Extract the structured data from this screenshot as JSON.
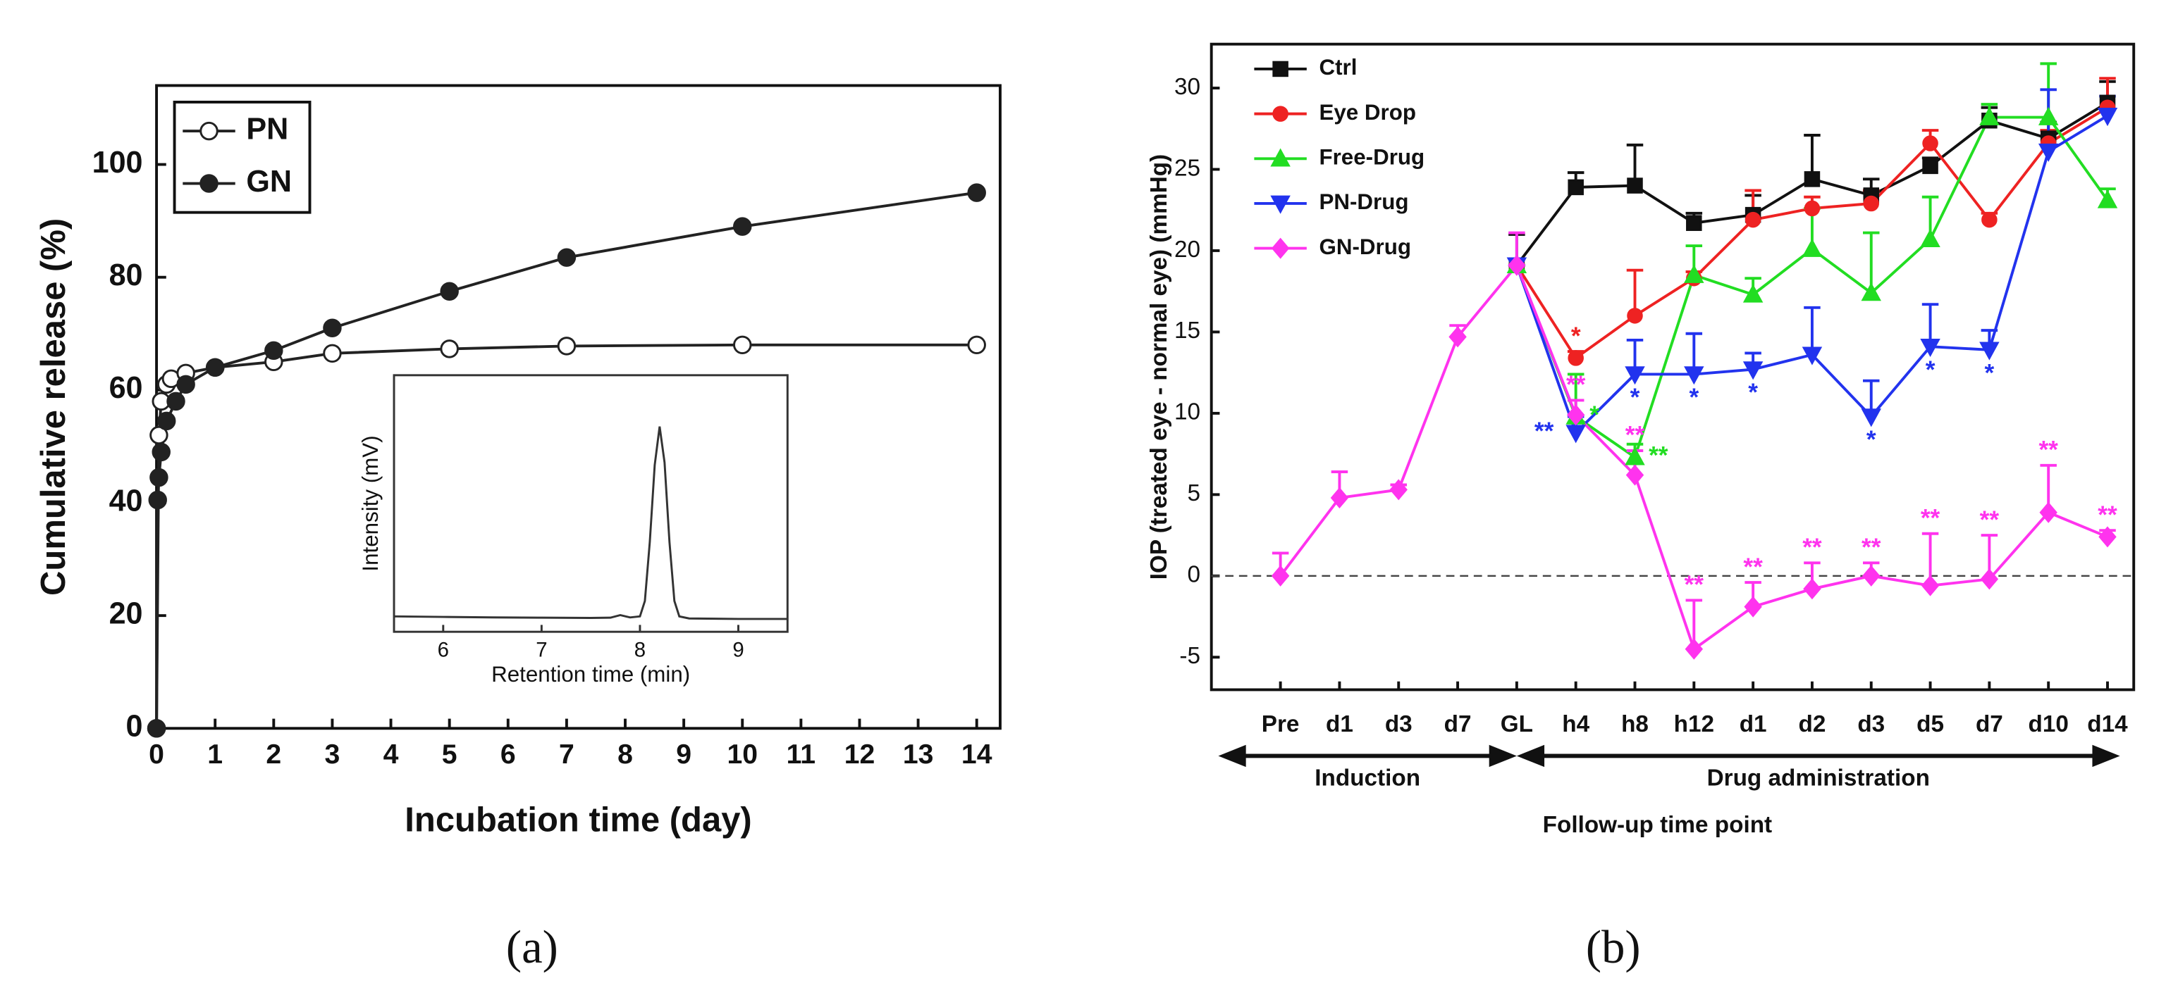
{
  "captions": [
    "(a)",
    "(b)"
  ],
  "chart_data": [
    {
      "type": "line",
      "xlabel": "Incubation time (day)",
      "ylabel": "Cumulative release (%)",
      "xlim": [
        0,
        14.4
      ],
      "ylim": [
        0,
        114
      ],
      "xticks": [
        0,
        1,
        2,
        3,
        4,
        5,
        6,
        7,
        8,
        9,
        10,
        11,
        12,
        13,
        14
      ],
      "yticks": [
        0,
        20,
        40,
        60,
        80,
        100
      ],
      "legend": "upper left",
      "series": [
        {
          "name": "PN",
          "color": "#222222",
          "marker_fill": "#ffffff",
          "x": [
            0,
            0.04,
            0.08,
            0.17,
            0.25,
            0.5,
            1,
            2,
            3,
            5,
            7,
            10,
            14
          ],
          "values": [
            0,
            52,
            58,
            61,
            62,
            63,
            64,
            65,
            66.5,
            67.3,
            67.8,
            68,
            68
          ]
        },
        {
          "name": "GN",
          "color": "#222222",
          "marker_fill": "#222222",
          "x": [
            0,
            0.02,
            0.04,
            0.08,
            0.17,
            0.33,
            0.5,
            1,
            2,
            3,
            5,
            7,
            10,
            14
          ],
          "values": [
            0,
            40.5,
            44.5,
            49,
            54.5,
            58,
            61,
            64,
            67,
            71,
            77.5,
            83.5,
            89,
            95
          ]
        }
      ]
    },
    {
      "type": "line",
      "xlabel": "Retention time (min)",
      "ylabel": "Intensity (mV)",
      "xlim": [
        5.5,
        9.5
      ],
      "ylim": [
        0,
        100
      ],
      "xticks": [
        6,
        7,
        8,
        9
      ],
      "series": [
        {
          "color": "#333333",
          "x": [
            5.5,
            6,
            6.5,
            7,
            7.5,
            7.7,
            7.8,
            7.9,
            8,
            8.05,
            8.1,
            8.15,
            8.2,
            8.25,
            8.3,
            8.35,
            8.4,
            8.5,
            9,
            9.5
          ],
          "values": [
            6,
            5.8,
            5.6,
            5.5,
            5.4,
            5.5,
            6.5,
            5.6,
            6,
            12,
            35,
            65,
            80,
            66,
            35,
            12,
            6,
            5.2,
            5,
            5
          ]
        }
      ]
    },
    {
      "type": "line",
      "xlabel": "Follow-up time point",
      "ylabel": "IOP (treated eye - normal eye) (mmHg)",
      "phases": [
        "Induction",
        "Drug administration"
      ],
      "categories": [
        "Pre",
        "d1",
        "d3",
        "d7",
        "GL",
        "h4",
        "h8",
        "h12",
        "d1",
        "d2",
        "d3",
        "d5",
        "d7",
        "d10",
        "d14"
      ],
      "ylim": [
        -7,
        32.7
      ],
      "yticks": [
        -5,
        0,
        5,
        10,
        15,
        20,
        25,
        30
      ],
      "hline": 0,
      "legend": "upper left",
      "series": [
        {
          "name": "Ctrl",
          "color": "#111111",
          "marker": "square",
          "star_position": "above",
          "values": [
            null,
            null,
            null,
            null,
            19.1,
            23.9,
            24,
            21.7,
            22.2,
            24.4,
            23.4,
            25.2,
            28,
            26.9,
            29.1
          ],
          "errors": [
            null,
            null,
            null,
            null,
            1.9,
            0.9,
            2.5,
            0.6,
            1.2,
            2.7,
            1,
            0.5,
            0.8,
            1,
            1.3
          ],
          "stars": [
            null,
            null,
            null,
            null,
            null,
            null,
            null,
            null,
            null,
            null,
            null,
            null,
            null,
            null,
            null
          ]
        },
        {
          "name": "Eye Drop",
          "color": "#ee2222",
          "marker": "circle",
          "star_position": "above",
          "values": [
            null,
            null,
            null,
            null,
            19.1,
            13.4,
            16,
            18.3,
            21.9,
            22.6,
            22.9,
            26.6,
            21.9,
            26.6,
            28.8
          ],
          "errors": [
            null,
            null,
            null,
            null,
            0,
            0.4,
            2.8,
            0.4,
            1.8,
            0.7,
            0.8,
            0.8,
            0.4,
            0.8,
            1.8
          ],
          "stars": [
            null,
            null,
            null,
            null,
            null,
            "*",
            null,
            null,
            null,
            null,
            null,
            null,
            null,
            null,
            null
          ]
        },
        {
          "name": "Free-Drug",
          "color": "#22dd22",
          "marker": "triangle",
          "star_position": "right",
          "values": [
            null,
            null,
            null,
            null,
            19.1,
            9.8,
            7.3,
            18.5,
            17.3,
            20.1,
            17.4,
            20.7,
            28.2,
            28.2,
            23.1
          ],
          "errors": [
            null,
            null,
            null,
            null,
            0,
            2.6,
            0.8,
            1.8,
            1,
            2.5,
            3.7,
            2.6,
            0.8,
            3.3,
            0.7
          ],
          "stars": [
            null,
            null,
            null,
            null,
            null,
            "*",
            "**",
            null,
            null,
            null,
            null,
            null,
            null,
            null,
            null
          ]
        },
        {
          "name": "PN-Drug",
          "color": "#2233ee",
          "marker": "triangle-down",
          "star_position": "below",
          "values": [
            null,
            null,
            null,
            null,
            19.1,
            8.8,
            12.4,
            12.4,
            12.7,
            13.6,
            9.8,
            14.1,
            13.9,
            26.1,
            28.3
          ],
          "errors": [
            null,
            null,
            null,
            null,
            0,
            1,
            2.1,
            2.5,
            1,
            2.9,
            2.2,
            2.6,
            1.2,
            3.8,
            1.2
          ],
          "stars": [
            null,
            null,
            null,
            null,
            null,
            "**",
            "*",
            "*",
            "*",
            null,
            "*",
            "*",
            "*",
            null,
            null
          ]
        },
        {
          "name": "GN-Drug",
          "color": "#ff33ee",
          "marker": "diamond",
          "star_position": "above",
          "values": [
            0,
            4.8,
            5.3,
            14.7,
            19.1,
            9.9,
            6.2,
            -4.5,
            -1.9,
            -0.8,
            0,
            -0.6,
            -0.2,
            3.9,
            2.4
          ],
          "errors": [
            1.4,
            1.6,
            0.3,
            0.7,
            2,
            0.9,
            1.5,
            3,
            1.5,
            1.6,
            0.8,
            3.2,
            2.7,
            2.9,
            0.4
          ],
          "stars": [
            null,
            null,
            null,
            null,
            null,
            "**",
            "**",
            "**",
            "**",
            "**",
            "**",
            "**",
            "**",
            "**",
            "**"
          ]
        }
      ]
    }
  ]
}
